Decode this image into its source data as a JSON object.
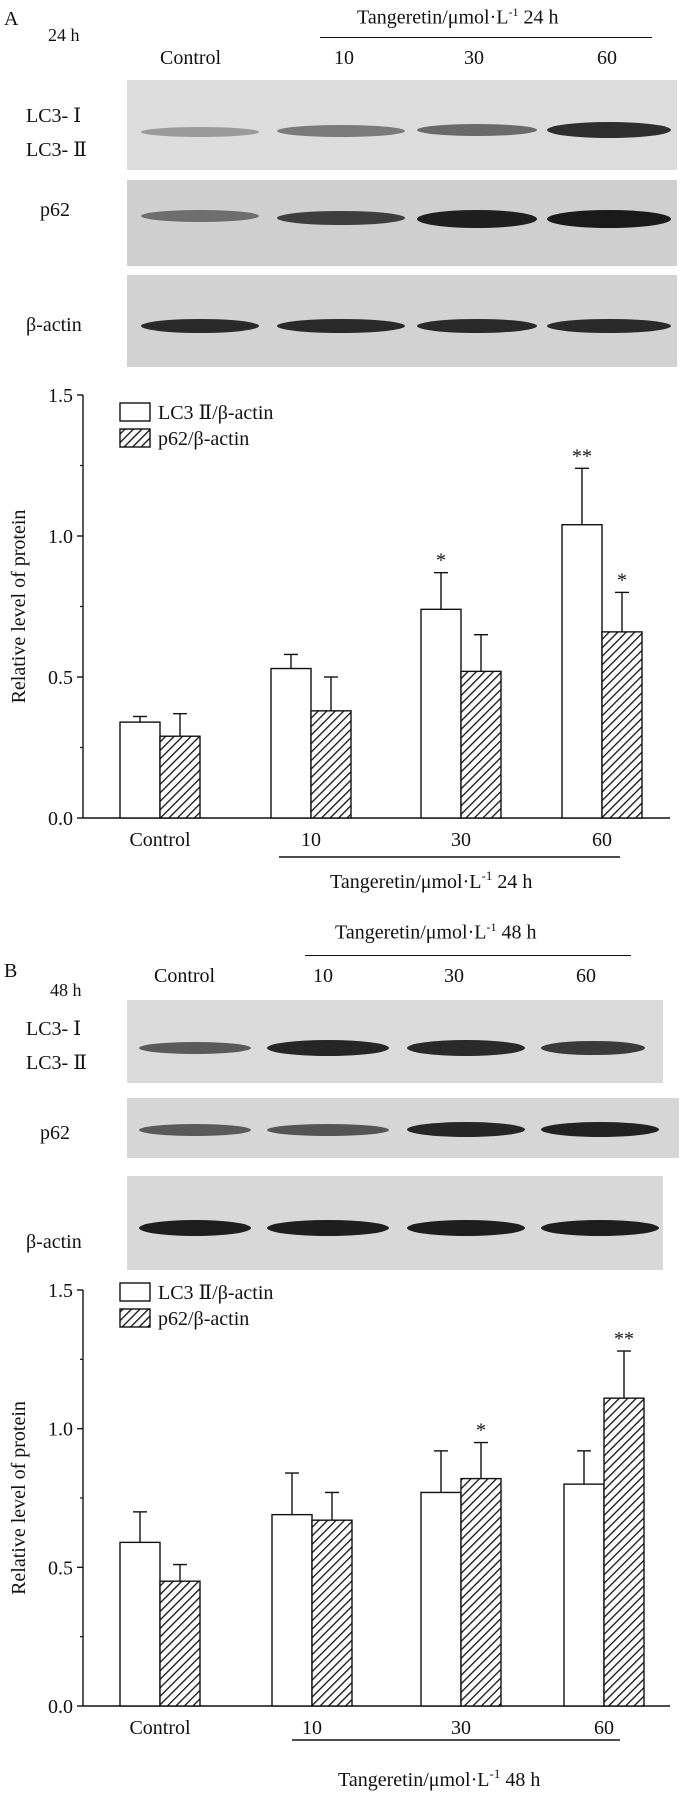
{
  "panelA": {
    "letter": "A",
    "time": "24 h",
    "control": "Control",
    "treatment_label": "Tangeretin/μmol·L",
    "exp": "-1",
    "suffix": " 24 h",
    "doses": [
      "10",
      "30",
      "60"
    ],
    "blot_labels": {
      "lc3_1": "LC3- Ⅰ",
      "lc3_2": "LC3- Ⅱ",
      "p62": "p62",
      "actin": "β-actin"
    }
  },
  "panelB": {
    "letter": "B",
    "time": "48 h",
    "control": "Control",
    "treatment_label": "Tangeretin/μmol·L",
    "exp": "-1",
    "suffix": " 48 h",
    "doses": [
      "10",
      "30",
      "60"
    ],
    "blot_labels": {
      "lc3_1": "LC3- Ⅰ",
      "lc3_2": "LC3- Ⅱ",
      "p62": "p62",
      "actin": "β-actin"
    }
  },
  "chart_data": [
    {
      "type": "bar",
      "panel": "A",
      "categories": [
        "Control",
        "10",
        "30",
        "60"
      ],
      "ylabel": "Relative level of protein",
      "xlabel": "Tangeretin/μmol·L-1 24 h",
      "ylim": [
        0,
        1.5
      ],
      "yticks": [
        "0.0",
        "0.5",
        "1.0",
        "1.5"
      ],
      "legend": [
        "LC3 Ⅱ/β-actin",
        "p62/β-actin"
      ],
      "series": [
        {
          "name": "LC3 Ⅱ/β-actin",
          "values": [
            0.34,
            0.53,
            0.74,
            1.04
          ],
          "errors": [
            0.02,
            0.05,
            0.13,
            0.2
          ],
          "sig": [
            "",
            "",
            "*",
            "**"
          ]
        },
        {
          "name": "p62/β-actin",
          "values": [
            0.29,
            0.38,
            0.52,
            0.66
          ],
          "errors": [
            0.08,
            0.12,
            0.13,
            0.14
          ],
          "sig": [
            "",
            "",
            "",
            "*"
          ]
        }
      ]
    },
    {
      "type": "bar",
      "panel": "B",
      "categories": [
        "Control",
        "10",
        "30",
        "60"
      ],
      "ylabel": "Relative level of protein",
      "xlabel": "Tangeretin/μmol·L-1 48 h",
      "ylim": [
        0,
        1.5
      ],
      "yticks": [
        "0.0",
        "0.5",
        "1.0",
        "1.5"
      ],
      "legend": [
        "LC3 Ⅱ/β-actin",
        "p62/β-actin"
      ],
      "series": [
        {
          "name": "LC3 Ⅱ/β-actin",
          "values": [
            0.59,
            0.69,
            0.77,
            0.8
          ],
          "errors": [
            0.11,
            0.15,
            0.15,
            0.12
          ],
          "sig": [
            "",
            "",
            "",
            ""
          ]
        },
        {
          "name": "p62/β-actin",
          "values": [
            0.45,
            0.67,
            0.82,
            1.11
          ],
          "errors": [
            0.06,
            0.1,
            0.13,
            0.17
          ],
          "sig": [
            "",
            "",
            "*",
            "**"
          ]
        }
      ]
    }
  ]
}
